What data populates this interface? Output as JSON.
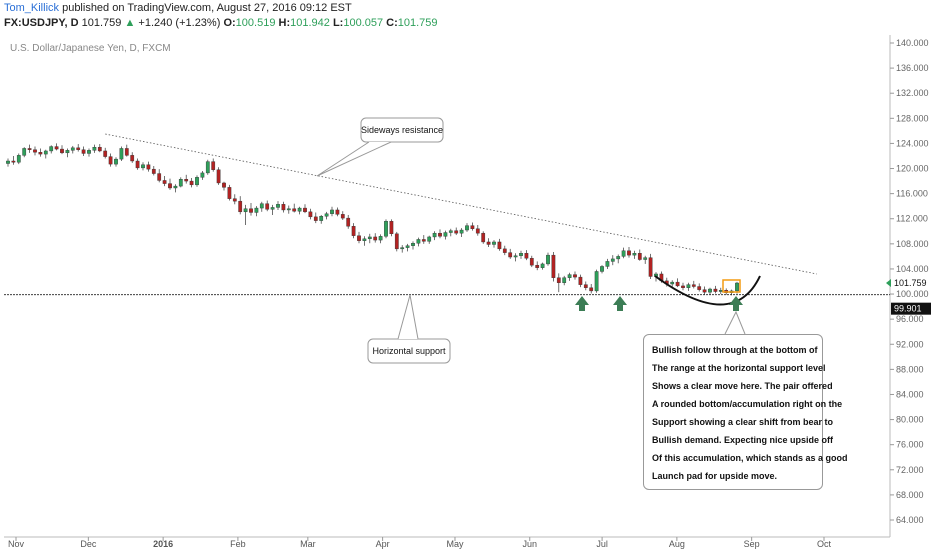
{
  "header": {
    "author": "Tom_Killick",
    "published": "published on TradingView.com, August 27, 2016 09:12 EST",
    "symbol": "FX:USDJPY, D",
    "last": "101.759",
    "change": "+1.240 (+1.23%)",
    "open_label": "O:",
    "open": "100.519",
    "high_label": "H:",
    "high": "101.942",
    "low_label": "L:",
    "low": "100.057",
    "close_label": "C:",
    "close": "101.759"
  },
  "instrument": "U.S. Dollar/Japanese Yen, D, FXCM",
  "colors": {
    "up": "#2e9f5a",
    "down": "#b22222",
    "wick": "#333333",
    "arrow": "#3c7d55",
    "box": "#f39c12",
    "last_badge": "#2e9f5a",
    "support_badge": "#111111"
  },
  "chart_data": {
    "type": "candlestick",
    "y_axis_ticks": [
      "140.000",
      "136.000",
      "132.000",
      "128.000",
      "124.000",
      "120.000",
      "116.000",
      "112.000",
      "108.000",
      "104.000",
      "100.000",
      "96.000",
      "92.000",
      "88.000",
      "84.000",
      "80.000",
      "76.000",
      "72.000",
      "68.000",
      "64.000"
    ],
    "ylim": [
      62.5,
      141
    ],
    "x_axis_ticks": [
      "Nov",
      "Dec",
      "2016",
      "Feb",
      "Mar",
      "Apr",
      "May",
      "Jun",
      "Jul",
      "Aug",
      "Sep",
      "Oct"
    ],
    "last_price": "101.759",
    "support_price": "99.901",
    "support_level": 99.9,
    "resistance_line": {
      "from": [
        "2015-12-08",
        125.5
      ],
      "to": [
        "2016-09-28",
        103.2
      ]
    },
    "series": [
      {
        "values": [
          [
            120.8,
            121.6,
            120.3,
            121.2
          ],
          [
            121.2,
            122.0,
            120.6,
            121.0
          ],
          [
            121.0,
            122.4,
            120.7,
            122.1
          ],
          [
            122.1,
            123.4,
            121.8,
            123.2
          ],
          [
            123.2,
            123.8,
            122.5,
            123.0
          ],
          [
            123.0,
            123.5,
            122.1,
            122.6
          ],
          [
            122.6,
            123.2,
            121.9,
            122.3
          ],
          [
            122.3,
            123.0,
            121.6,
            122.8
          ],
          [
            122.8,
            123.7,
            122.4,
            123.5
          ],
          [
            123.5,
            124.0,
            122.9,
            123.1
          ],
          [
            123.1,
            123.7,
            122.3,
            122.5
          ],
          [
            122.5,
            123.2,
            121.8,
            122.9
          ],
          [
            122.9,
            123.6,
            122.4,
            123.3
          ],
          [
            123.3,
            123.9,
            122.7,
            123.0
          ],
          [
            123.0,
            123.5,
            122.0,
            122.4
          ],
          [
            122.4,
            123.2,
            121.9,
            122.9
          ],
          [
            122.9,
            123.8,
            122.5,
            123.4
          ],
          [
            123.4,
            123.9,
            122.6,
            122.8
          ],
          [
            122.8,
            123.3,
            121.6,
            121.9
          ],
          [
            121.9,
            122.4,
            120.3,
            120.7
          ],
          [
            120.7,
            121.8,
            120.3,
            121.5
          ],
          [
            121.5,
            123.5,
            121.2,
            123.2
          ],
          [
            123.2,
            123.8,
            121.9,
            122.1
          ],
          [
            122.1,
            122.6,
            120.9,
            121.2
          ],
          [
            121.2,
            121.6,
            119.8,
            120.1
          ],
          [
            120.1,
            121.0,
            119.7,
            120.6
          ],
          [
            120.6,
            121.1,
            119.5,
            119.9
          ],
          [
            119.9,
            120.4,
            118.9,
            119.2
          ],
          [
            119.2,
            119.9,
            117.8,
            118.1
          ],
          [
            118.1,
            118.8,
            117.2,
            117.6
          ],
          [
            117.6,
            118.4,
            116.6,
            116.9
          ],
          [
            116.9,
            117.5,
            116.2,
            117.2
          ],
          [
            117.2,
            118.6,
            117.0,
            118.3
          ],
          [
            118.3,
            119.0,
            117.6,
            118.0
          ],
          [
            118.0,
            118.5,
            117.0,
            117.4
          ],
          [
            117.4,
            118.9,
            117.1,
            118.6
          ],
          [
            118.6,
            119.6,
            118.2,
            119.3
          ],
          [
            119.3,
            121.4,
            119.0,
            121.1
          ],
          [
            121.1,
            121.6,
            119.5,
            119.8
          ],
          [
            119.8,
            120.2,
            117.4,
            117.7
          ],
          [
            117.7,
            117.9,
            116.5,
            117.0
          ],
          [
            117.0,
            117.4,
            114.9,
            115.2
          ],
          [
            115.2,
            115.9,
            114.3,
            114.8
          ],
          [
            114.8,
            115.6,
            112.7,
            113.1
          ],
          [
            113.1,
            114.2,
            111.0,
            113.6
          ],
          [
            113.6,
            114.5,
            112.5,
            113.0
          ],
          [
            113.0,
            114.0,
            112.4,
            113.7
          ],
          [
            113.7,
            114.7,
            113.1,
            114.4
          ],
          [
            114.4,
            114.9,
            113.2,
            113.5
          ],
          [
            113.5,
            114.2,
            112.6,
            113.8
          ],
          [
            113.8,
            114.8,
            113.4,
            114.3
          ],
          [
            114.3,
            114.7,
            113.0,
            113.4
          ],
          [
            113.4,
            114.1,
            112.8,
            113.6
          ],
          [
            113.6,
            114.4,
            113.0,
            113.2
          ],
          [
            113.2,
            113.9,
            112.7,
            113.7
          ],
          [
            113.7,
            114.3,
            112.9,
            113.1
          ],
          [
            113.1,
            113.6,
            111.9,
            112.3
          ],
          [
            112.3,
            113.0,
            111.3,
            111.7
          ],
          [
            111.7,
            112.6,
            111.2,
            112.4
          ],
          [
            112.4,
            113.1,
            111.9,
            112.8
          ],
          [
            112.8,
            113.9,
            112.4,
            113.4
          ],
          [
            113.4,
            113.8,
            112.4,
            112.7
          ],
          [
            112.7,
            113.2,
            111.8,
            112.1
          ],
          [
            112.1,
            112.6,
            110.4,
            110.8
          ],
          [
            110.8,
            111.3,
            108.9,
            109.3
          ],
          [
            109.3,
            109.9,
            108.1,
            108.5
          ],
          [
            108.5,
            109.2,
            107.7,
            108.8
          ],
          [
            108.8,
            109.6,
            108.1,
            109.1
          ],
          [
            109.1,
            109.7,
            108.2,
            108.6
          ],
          [
            108.6,
            109.5,
            108.1,
            109.2
          ],
          [
            109.2,
            111.9,
            108.9,
            111.6
          ],
          [
            111.6,
            111.9,
            109.2,
            109.6
          ],
          [
            109.6,
            109.9,
            106.8,
            107.2
          ],
          [
            107.2,
            107.8,
            106.6,
            107.4
          ],
          [
            107.4,
            108.0,
            106.8,
            107.7
          ],
          [
            107.7,
            108.4,
            107.1,
            108.1
          ],
          [
            108.1,
            109.0,
            107.6,
            108.7
          ],
          [
            108.7,
            109.4,
            108.0,
            108.4
          ],
          [
            108.4,
            109.3,
            108.0,
            109.1
          ],
          [
            109.1,
            110.0,
            108.6,
            109.7
          ],
          [
            109.7,
            110.3,
            108.9,
            109.2
          ],
          [
            109.2,
            110.1,
            108.7,
            109.8
          ],
          [
            109.8,
            110.4,
            109.2,
            110.1
          ],
          [
            110.1,
            110.6,
            109.4,
            109.7
          ],
          [
            109.7,
            110.5,
            109.1,
            110.2
          ],
          [
            110.2,
            111.3,
            109.9,
            110.9
          ],
          [
            110.9,
            111.4,
            110.1,
            110.4
          ],
          [
            110.4,
            111.0,
            109.3,
            109.7
          ],
          [
            109.7,
            110.0,
            108.0,
            108.3
          ],
          [
            108.3,
            108.9,
            107.5,
            107.9
          ],
          [
            107.9,
            108.6,
            107.4,
            108.3
          ],
          [
            108.3,
            108.8,
            106.9,
            107.2
          ],
          [
            107.2,
            107.7,
            106.2,
            106.6
          ],
          [
            106.6,
            107.2,
            105.6,
            105.9
          ],
          [
            105.9,
            106.5,
            105.2,
            106.1
          ],
          [
            106.1,
            106.9,
            105.6,
            106.5
          ],
          [
            106.5,
            107.0,
            105.4,
            105.7
          ],
          [
            105.7,
            106.1,
            104.3,
            104.6
          ],
          [
            104.6,
            105.2,
            103.8,
            104.2
          ],
          [
            104.2,
            105.0,
            103.9,
            104.8
          ],
          [
            104.8,
            106.6,
            104.5,
            106.2
          ],
          [
            106.2,
            106.7,
            102.0,
            102.6
          ],
          [
            102.6,
            103.3,
            100.3,
            101.8
          ],
          [
            101.8,
            102.9,
            101.4,
            102.6
          ],
          [
            102.6,
            103.4,
            102.1,
            103.1
          ],
          [
            103.1,
            103.6,
            102.3,
            102.7
          ],
          [
            102.7,
            103.1,
            101.1,
            101.5
          ],
          [
            101.5,
            102.0,
            100.6,
            101.0
          ],
          [
            101.0,
            101.6,
            100.1,
            100.5
          ],
          [
            100.5,
            103.9,
            100.2,
            103.6
          ],
          [
            103.6,
            104.6,
            103.3,
            104.4
          ],
          [
            104.4,
            105.6,
            104.0,
            105.2
          ],
          [
            105.2,
            106.2,
            104.6,
            105.6
          ],
          [
            105.6,
            106.3,
            104.9,
            106.0
          ],
          [
            106.0,
            107.4,
            105.7,
            106.9
          ],
          [
            106.9,
            107.5,
            105.8,
            106.2
          ],
          [
            106.2,
            106.9,
            105.6,
            106.5
          ],
          [
            106.5,
            107.1,
            105.3,
            105.5
          ],
          [
            105.5,
            106.1,
            104.8,
            105.8
          ],
          [
            105.8,
            106.4,
            102.4,
            102.8
          ],
          [
            102.8,
            103.5,
            102.0,
            103.2
          ],
          [
            103.2,
            103.6,
            101.8,
            102.1
          ],
          [
            102.1,
            102.6,
            101.2,
            101.6
          ],
          [
            101.6,
            102.2,
            100.9,
            101.9
          ],
          [
            101.9,
            102.5,
            101.1,
            101.3
          ],
          [
            101.3,
            101.8,
            100.6,
            101.0
          ],
          [
            101.0,
            101.8,
            100.5,
            101.5
          ],
          [
            101.5,
            102.1,
            100.9,
            101.2
          ],
          [
            101.2,
            101.7,
            100.4,
            100.7
          ],
          [
            100.7,
            101.2,
            99.9,
            100.3
          ],
          [
            100.3,
            101.0,
            99.9,
            100.8
          ],
          [
            100.8,
            101.3,
            100.1,
            100.4
          ],
          [
            100.4,
            101.0,
            100.0,
            100.6
          ],
          [
            100.6,
            100.9,
            99.9,
            100.2
          ],
          [
            100.2,
            100.7,
            99.8,
            100.5
          ],
          [
            100.5,
            101.94,
            100.06,
            101.76
          ]
        ]
      }
    ]
  },
  "annotations": {
    "resistance_label": "Sideways resistance",
    "support_label": "Horizontal support",
    "note_lines": [
      "Bullish follow through at the bottom of",
      "The range at the horizontal support level",
      "Shows a clear move here. The pair offered",
      "A rounded bottom/accumulation right on the",
      "Support showing a clear shift from bear to",
      "Bullish demand. Expecting nice upside off",
      "Of this accumulation, which stands as a good",
      "Launch pad for upside move."
    ]
  }
}
